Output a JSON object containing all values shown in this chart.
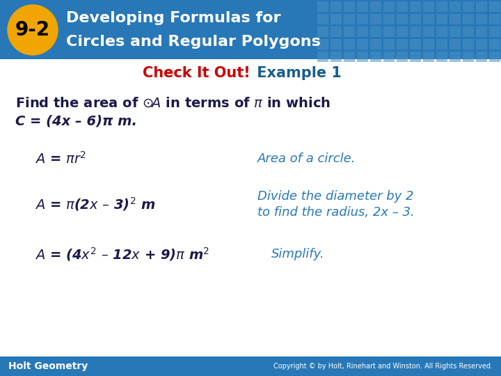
{
  "header_bg_color": "#2878b8",
  "header_text_line1": "Developing Formulas for",
  "header_text_line2": "Circles and Regular Polygons",
  "header_text_color": "#ffffff",
  "badge_color": "#f0a500",
  "badge_text": "9-2",
  "badge_text_color": "#000000",
  "subtitle_red": "Check It Out!",
  "subtitle_blue": " Example 1",
  "subtitle_red_color": "#cc0000",
  "subtitle_blue_color": "#1a5f8a",
  "body_bg_color": "#ffffff",
  "problem_text_color": "#1a1a4a",
  "formula_color": "#1a1a4a",
  "note_color": "#2878b8",
  "footer_bg_color": "#2878b8",
  "footer_text_left": "Holt Geometry",
  "footer_text_right": "Copyright © by Holt, Rinehart and Winston. All Rights Reserved.",
  "footer_text_color": "#ffffff",
  "grid_pattern_color": "#4a90c4",
  "dash": "–"
}
